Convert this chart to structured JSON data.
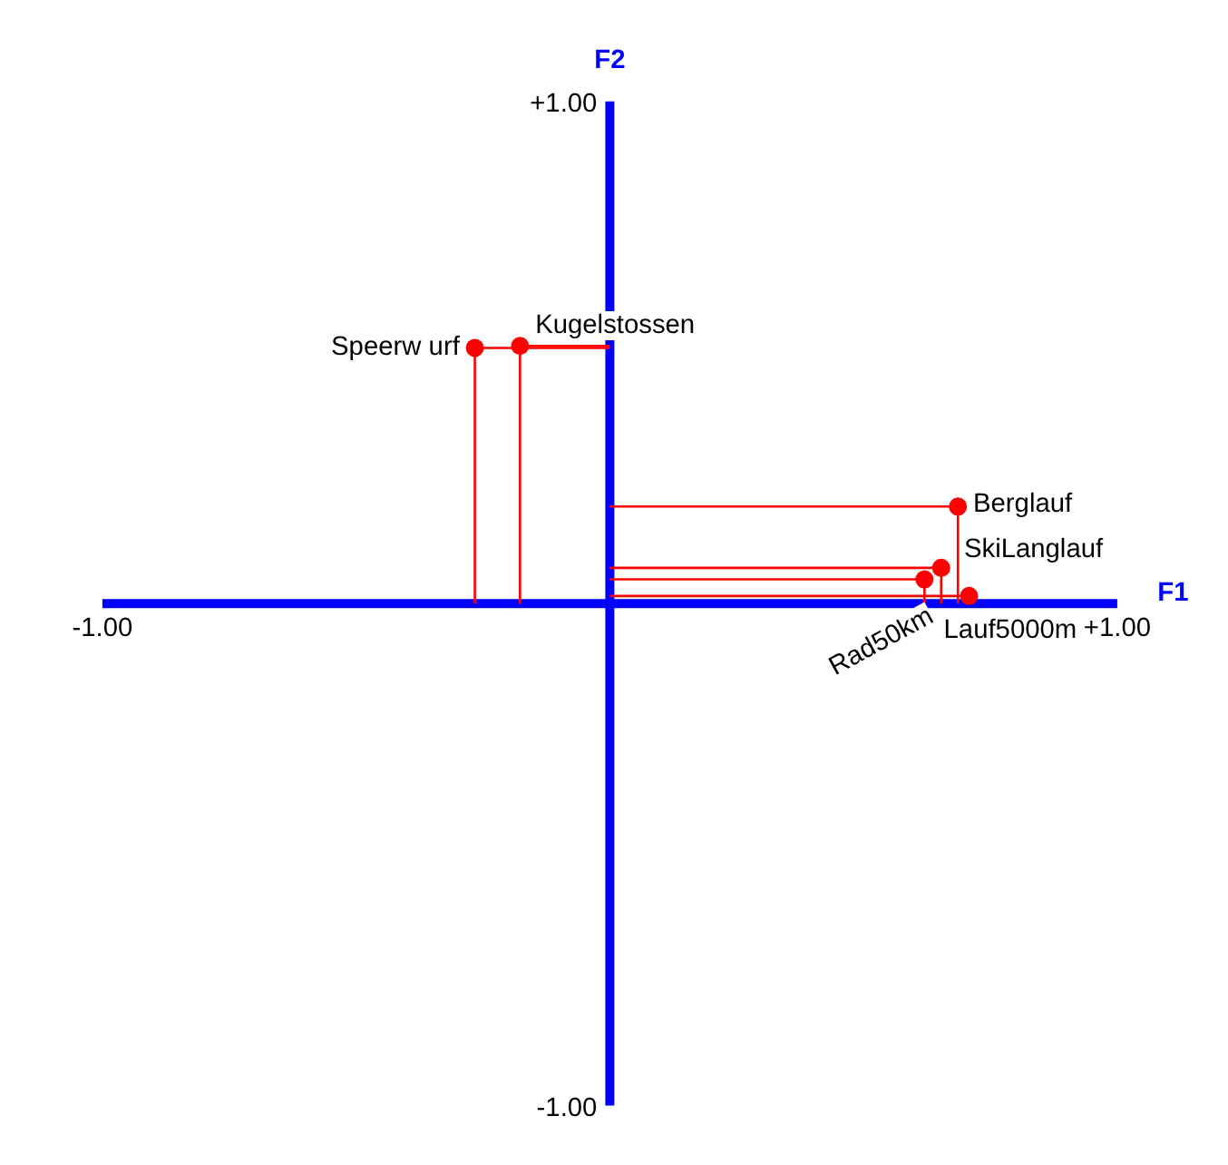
{
  "chart_data": {
    "type": "scatter",
    "xlabel": "F1",
    "ylabel": "F2",
    "x": [
      -0.266,
      -0.177,
      0.686,
      0.653,
      0.62,
      0.708
    ],
    "series": [
      {
        "color": "#ff0000",
        "values": [
          0.509,
          0.513,
          0.193,
          0.071,
          0.048,
          0.015
        ]
      }
    ],
    "xlim": [
      -1,
      1
    ],
    "ylim": [
      -1,
      1
    ],
    "xticks": [
      {
        "value": -1,
        "label": "-1.00"
      },
      {
        "value": 1,
        "label": "+1.00"
      }
    ],
    "yticks": [
      {
        "value": -1,
        "label": "-1.00"
      },
      {
        "value": 1,
        "label": "+1.00"
      }
    ],
    "marker": "circle",
    "grid": false,
    "annotations": [
      {
        "text": "Speerw urf",
        "x": -0.266,
        "y": 0.509
      },
      {
        "text": "Kugelstossen",
        "x": -0.177,
        "y": 0.513
      },
      {
        "text": "Berglauf",
        "x": 0.686,
        "y": 0.193
      },
      {
        "text": "SkiLanglauf",
        "x": 0.653,
        "y": 0.071
      },
      {
        "text": "Rad50km",
        "x": 0.62,
        "y": 0.048
      },
      {
        "text": "Lauf5000m",
        "x": 0.708,
        "y": 0.015
      }
    ]
  }
}
